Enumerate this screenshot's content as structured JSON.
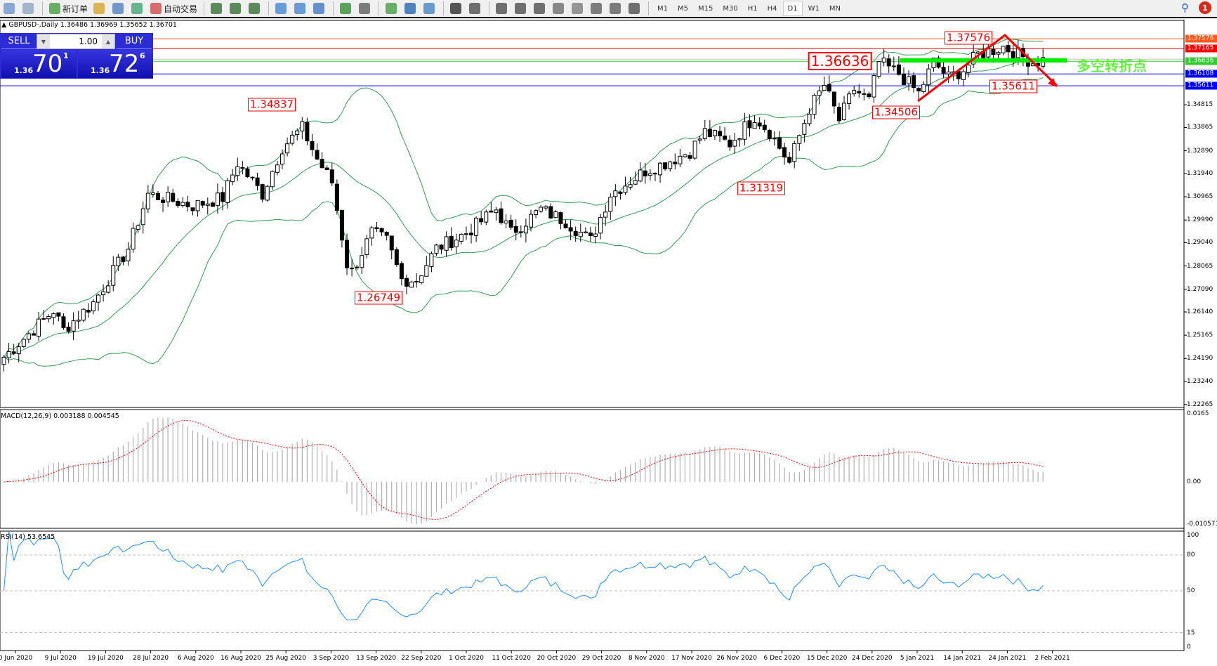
{
  "toolbar": {
    "items": [
      {
        "icon": "chart-window-icon"
      },
      {
        "icon": "zoom-chart-icon"
      },
      {
        "icon": "new-order-icon",
        "label": "新订单"
      },
      {
        "icon": "history-icon"
      },
      {
        "icon": "terminal-icon"
      },
      {
        "icon": "signal-icon"
      },
      {
        "icon": "autotrading-icon",
        "label": "自动交易"
      },
      {
        "icon": "bar-chart-icon"
      },
      {
        "icon": "candlestick-icon"
      },
      {
        "icon": "line-chart-icon"
      },
      {
        "icon": "zoom-in-icon"
      },
      {
        "icon": "zoom-out-icon"
      },
      {
        "icon": "tile-windows-icon"
      },
      {
        "icon": "auto-scroll-icon"
      },
      {
        "icon": "chart-shift-icon"
      },
      {
        "icon": "indicators-icon"
      },
      {
        "icon": "periods-icon"
      },
      {
        "icon": "templates-icon"
      },
      {
        "icon": "cursor-icon"
      },
      {
        "icon": "crosshair-icon"
      },
      {
        "icon": "vertical-line-icon"
      },
      {
        "icon": "horizontal-line-icon"
      },
      {
        "icon": "trendline-icon"
      },
      {
        "icon": "equidistant-channel-icon"
      },
      {
        "icon": "fibonacci-icon"
      },
      {
        "icon": "text-icon"
      },
      {
        "icon": "text-label-icon"
      },
      {
        "icon": "arrows-icon"
      }
    ],
    "timeframes": [
      "M1",
      "M5",
      "M15",
      "M30",
      "H1",
      "H4",
      "D1",
      "W1",
      "MN"
    ],
    "active_timeframe": "D1",
    "notification_count": "1"
  },
  "chart": {
    "title": "GBPUSD-,Daily  1.36486 1.36969 1.35652 1.36701",
    "trade_panel": {
      "sell_label": "SELL",
      "buy_label": "BUY",
      "lot": "1.00",
      "sell_prefix": "1.36",
      "sell_big": "70",
      "sell_sup": "1",
      "buy_prefix": "1.36",
      "buy_big": "72",
      "buy_sup": "6"
    },
    "annotations": [
      "1.34837",
      "1.26749",
      "1.36636",
      "1.37576",
      "1.34506",
      "1.31319",
      "1.35611"
    ],
    "pivot_text": "多空转折点",
    "levels": [
      {
        "price": "1.37576",
        "color": "#ff5a1e"
      },
      {
        "price": "1.37165",
        "color": "#ff0000"
      },
      {
        "price": "1.36636",
        "color": "#33cc33"
      },
      {
        "price": "1.36108",
        "color": "#0000ff"
      },
      {
        "price": "1.35611",
        "color": "#0000ff"
      }
    ],
    "colors": {
      "up": "#ffffff",
      "down": "#000000",
      "bands": "#2e9e4e",
      "macd_signal": "#ff0000",
      "macd_hist": "#b0b0b0",
      "rsi": "#1e90ff",
      "pivot_bar": "#00ee00",
      "arrow": "#ff0000"
    }
  },
  "chart_data": [
    {
      "type": "candlestick",
      "symbol": "GBPUSD-",
      "timeframe": "Daily",
      "ylim": [
        1.2214,
        1.3835
      ],
      "y_ticks": [
        "1.34815",
        "1.33865",
        "1.32890",
        "1.31940",
        "1.30965",
        "1.29990",
        "1.29040",
        "1.28065",
        "1.27090",
        "1.26140",
        "1.25165",
        "1.24190",
        "1.23240",
        "1.22265"
      ],
      "x_ticks": [
        "0 Jun 2020",
        "9 Jul 2020",
        "19 Jul 2020",
        "28 Jul 2020",
        "6 Aug 2020",
        "16 Aug 2020",
        "25 Aug 2020",
        "3 Sep 2020",
        "13 Sep 2020",
        "22 Sep 2020",
        "1 Oct 2020",
        "11 Oct 2020",
        "20 Oct 2020",
        "29 Oct 2020",
        "8 Nov 2020",
        "17 Nov 2020",
        "26 Nov 2020",
        "6 Dec 2020",
        "15 Dec 2020",
        "24 Dec 2020",
        "5 Jan 2021",
        "14 Jan 2021",
        "24 Jan 2021",
        "2 Feb 2021"
      ],
      "bars": 210,
      "close_path": [
        [
          1,
          1.2425
        ],
        [
          11,
          1.262
        ],
        [
          13,
          1.2539
        ],
        [
          19,
          1.2653
        ],
        [
          26,
          1.288
        ],
        [
          30,
          1.3108
        ],
        [
          39,
          1.3059
        ],
        [
          45,
          1.3092
        ],
        [
          48,
          1.3238
        ],
        [
          53,
          1.3108
        ],
        [
          57,
          1.3303
        ],
        [
          61,
          1.3384
        ],
        [
          64,
          1.3254
        ],
        [
          67,
          1.3157
        ],
        [
          70,
          1.2815
        ],
        [
          71,
          1.2783
        ],
        [
          75,
          1.2945
        ],
        [
          78,
          1.2913
        ],
        [
          81,
          1.275
        ],
        [
          84,
          1.275
        ],
        [
          88,
          1.288
        ],
        [
          94,
          1.2945
        ],
        [
          100,
          1.3043
        ],
        [
          103,
          1.2945
        ],
        [
          109,
          1.3043
        ],
        [
          114,
          1.2994
        ],
        [
          119,
          1.2913
        ],
        [
          123,
          1.3108
        ],
        [
          130,
          1.3205
        ],
        [
          134,
          1.3238
        ],
        [
          139,
          1.3287
        ],
        [
          142,
          1.3368
        ],
        [
          147,
          1.3319
        ],
        [
          152,
          1.3433
        ],
        [
          155,
          1.3368
        ],
        [
          158,
          1.327
        ],
        [
          159,
          1.3238
        ],
        [
          163,
          1.3465
        ],
        [
          166,
          1.3563
        ],
        [
          169,
          1.3417
        ],
        [
          172,
          1.3547
        ],
        [
          175,
          1.3498
        ],
        [
          177,
          1.366
        ],
        [
          181,
          1.3612
        ],
        [
          185,
          1.353
        ],
        [
          188,
          1.366
        ],
        [
          191,
          1.3596
        ],
        [
          194,
          1.3628
        ],
        [
          197,
          1.3693
        ],
        [
          202,
          1.3725
        ],
        [
          205,
          1.3693
        ],
        [
          208,
          1.366
        ],
        [
          210,
          1.367
        ]
      ],
      "overlay": "Bollinger Bands"
    },
    {
      "type": "bar+line",
      "title": "MACD(12,26,9) 0.003188 0.004545",
      "ylim": [
        -0.010571,
        0.0165
      ],
      "y_ticks": [
        "0.0165",
        "0.00",
        "-0.010571"
      ]
    },
    {
      "type": "line",
      "title": "RSI(14) 53.6545",
      "ylim": [
        0,
        100
      ],
      "y_ticks": [
        "100",
        "80",
        "50",
        "15",
        "0"
      ],
      "levels": [
        80,
        50,
        15
      ]
    }
  ]
}
